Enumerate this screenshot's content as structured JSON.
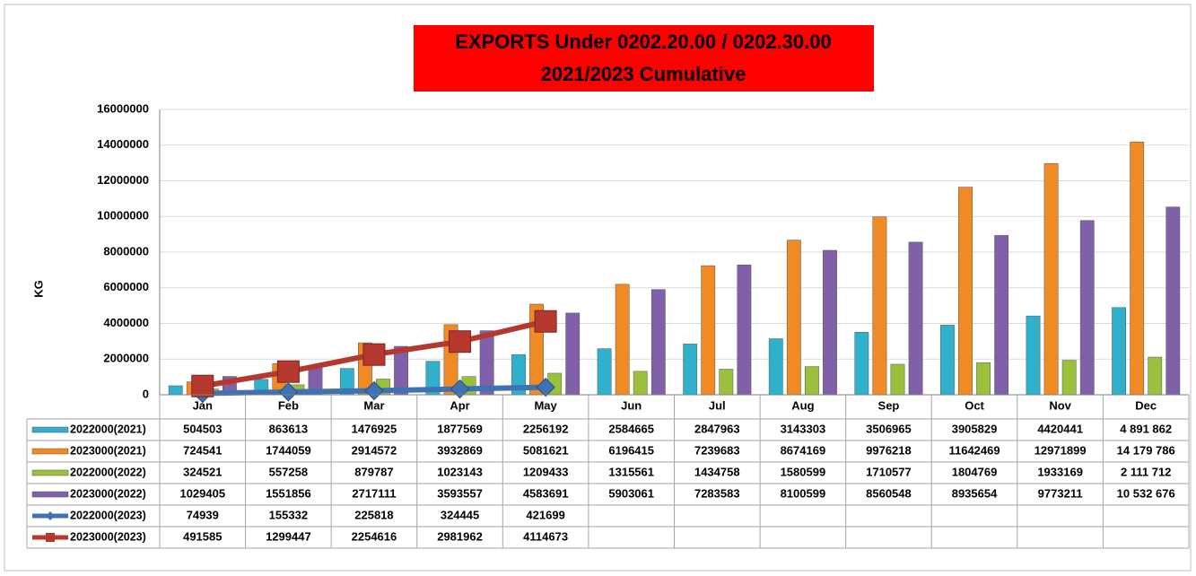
{
  "chart_data": {
    "type": "bar",
    "title": [
      "EXPORTS Under    0202.20.00 / 0202.30.00",
      "2021/2023  Cumulative"
    ],
    "y_label": "KG",
    "categories": [
      "Jan",
      "Feb",
      "Mar",
      "Apr",
      "May",
      "Jun",
      "Jul",
      "Aug",
      "Sep",
      "Oct",
      "Nov",
      "Dec"
    ],
    "ylim": [
      0,
      16000000
    ],
    "yticks": [
      0,
      2000000,
      4000000,
      6000000,
      8000000,
      10000000,
      12000000,
      14000000,
      16000000
    ],
    "grid": true,
    "series": [
      {
        "name": "2022000(2021)",
        "kind": "bar",
        "color": "#31b0cc",
        "values": [
          504503,
          863613,
          1476925,
          1877569,
          2256192,
          2584665,
          2847963,
          3143303,
          3506965,
          3905829,
          4420441,
          4891862
        ],
        "value_labels": [
          "504503",
          "863613",
          "1476925",
          "1877569",
          "2256192",
          "2584665",
          "2847963",
          "3143303",
          "3506965",
          "3905829",
          "4420441",
          "4 891 862"
        ]
      },
      {
        "name": "2023000(2021)",
        "kind": "bar",
        "color": "#f08a24",
        "values": [
          724541,
          1744059,
          2914572,
          3932869,
          5081621,
          6196415,
          7239683,
          8674169,
          9976218,
          11642469,
          12971899,
          14179786
        ],
        "value_labels": [
          "724541",
          "1744059",
          "2914572",
          "3932869",
          "5081621",
          "6196415",
          "7239683",
          "8674169",
          "9976218",
          "11642469",
          "12971899",
          "14 179 786"
        ]
      },
      {
        "name": "2022000(2022)",
        "kind": "bar",
        "color": "#9bc03c",
        "values": [
          324521,
          557258,
          879787,
          1023143,
          1209433,
          1315561,
          1434758,
          1580599,
          1710577,
          1804769,
          1933169,
          2111712
        ],
        "value_labels": [
          "324521",
          "557258",
          "879787",
          "1023143",
          "1209433",
          "1315561",
          "1434758",
          "1580599",
          "1710577",
          "1804769",
          "1933169",
          "2 111 712"
        ]
      },
      {
        "name": "2023000(2022)",
        "kind": "bar",
        "color": "#8060a8",
        "values": [
          1029405,
          1551856,
          2717111,
          3593557,
          4583691,
          5903061,
          7283583,
          8100599,
          8560548,
          8935654,
          9773211,
          10532676
        ],
        "value_labels": [
          "1029405",
          "1551856",
          "2717111",
          "3593557",
          "4583691",
          "5903061",
          "7283583",
          "8100599",
          "8560548",
          "8935654",
          "9773211",
          "10 532 676"
        ]
      },
      {
        "name": "2022000(2023)",
        "kind": "line",
        "marker": "diamond",
        "color": "#3f72b0",
        "values": [
          74939,
          155332,
          225818,
          324445,
          421699,
          null,
          null,
          null,
          null,
          null,
          null,
          null
        ],
        "value_labels": [
          "74939",
          "155332",
          "225818",
          "324445",
          "421699",
          null,
          null,
          null,
          null,
          null,
          null,
          null
        ]
      },
      {
        "name": "2023000(2023)",
        "kind": "line",
        "marker": "square",
        "color": "#b5382f",
        "values": [
          491585,
          1299447,
          2254616,
          2981962,
          4114673,
          null,
          null,
          null,
          null,
          null,
          null,
          null
        ],
        "value_labels": [
          "491585",
          "1299447",
          "2254616",
          "2981962",
          "4114673",
          null,
          null,
          null,
          null,
          null,
          null,
          null
        ]
      }
    ]
  }
}
